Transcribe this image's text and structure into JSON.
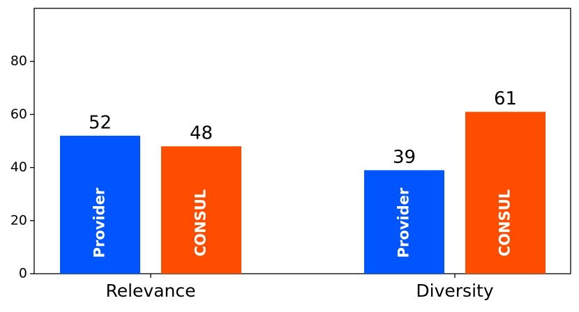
{
  "chart_data": {
    "type": "bar",
    "categories": [
      "Relevance",
      "Diversity"
    ],
    "series": [
      {
        "name": "Provider",
        "color": "#0055ff",
        "values": [
          52,
          39
        ]
      },
      {
        "name": "CONSUL",
        "color": "#ff4d00",
        "values": [
          48,
          61
        ]
      }
    ],
    "ylim": [
      0,
      100
    ],
    "yticks": [
      0,
      20,
      40,
      60,
      80
    ],
    "grid": false
  }
}
